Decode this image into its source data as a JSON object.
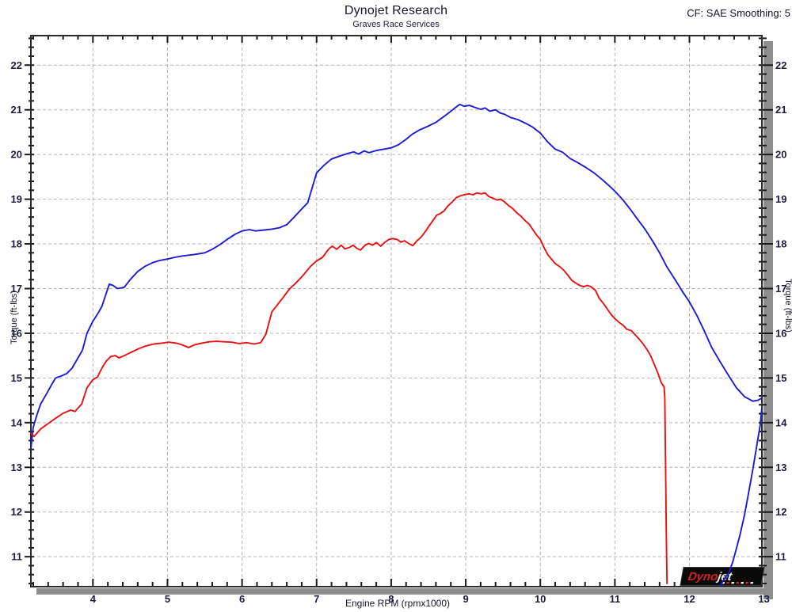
{
  "header": {
    "title": "Dynojet Research",
    "subtitle": "Graves Race Services",
    "top_right_note": "CF: SAE Smoothing: 5"
  },
  "logo": {
    "part1": "Dyno",
    "part2": "jet"
  },
  "colors": {
    "blue_series": "#1b1bd6",
    "red_series": "#ea1010",
    "grid": "#b3b3b3",
    "border": "#2a2a2a",
    "shadow": "#8d8d8d",
    "tick_text": "#1c1c40",
    "logo_bg": "#0a0a0a",
    "logo_red": "#d92121",
    "logo_white": "#f0f0f0"
  },
  "chart_data": {
    "type": "line",
    "title": "Dynojet Research",
    "subtitle": "Graves Race Services",
    "annotation_top_right": "CF: SAE Smoothing: 5",
    "xlabel": "Engine RPM (rpmx1000)",
    "ylabel_left": "Torque (ft-lbs)",
    "ylabel_right": "Torque (ft-lbs)",
    "grid": "dashed, at every major tick",
    "legend_position": "none",
    "x_view": [
      3.168,
      12.972
    ],
    "y_view": [
      10.33,
      22.66
    ],
    "x_ticks": [
      4,
      5,
      6,
      7,
      8,
      9,
      10,
      11,
      12,
      13
    ],
    "y_ticks": [
      11,
      12,
      13,
      14,
      15,
      16,
      17,
      18,
      19,
      20,
      21,
      22
    ],
    "minor_tick_step": 0.2,
    "series": [
      {
        "name": "torque-run-blue",
        "color": "#1b1bd6",
        "points": [
          [
            3.17,
            13.45
          ],
          [
            3.2,
            13.9
          ],
          [
            3.25,
            14.18
          ],
          [
            3.3,
            14.42
          ],
          [
            3.37,
            14.62
          ],
          [
            3.45,
            14.86
          ],
          [
            3.5,
            15.0
          ],
          [
            3.57,
            15.04
          ],
          [
            3.65,
            15.1
          ],
          [
            3.72,
            15.22
          ],
          [
            3.8,
            15.45
          ],
          [
            3.86,
            15.62
          ],
          [
            3.92,
            16.0
          ],
          [
            4.0,
            16.27
          ],
          [
            4.07,
            16.45
          ],
          [
            4.12,
            16.6
          ],
          [
            4.17,
            16.85
          ],
          [
            4.22,
            17.1
          ],
          [
            4.27,
            17.07
          ],
          [
            4.33,
            17.0
          ],
          [
            4.42,
            17.03
          ],
          [
            4.5,
            17.2
          ],
          [
            4.6,
            17.38
          ],
          [
            4.7,
            17.5
          ],
          [
            4.8,
            17.58
          ],
          [
            4.9,
            17.63
          ],
          [
            5.0,
            17.66
          ],
          [
            5.1,
            17.7
          ],
          [
            5.2,
            17.73
          ],
          [
            5.35,
            17.76
          ],
          [
            5.5,
            17.8
          ],
          [
            5.6,
            17.88
          ],
          [
            5.7,
            17.98
          ],
          [
            5.8,
            18.1
          ],
          [
            5.9,
            18.21
          ],
          [
            6.0,
            18.29
          ],
          [
            6.1,
            18.32
          ],
          [
            6.18,
            18.29
          ],
          [
            6.3,
            18.31
          ],
          [
            6.4,
            18.33
          ],
          [
            6.5,
            18.36
          ],
          [
            6.6,
            18.43
          ],
          [
            6.7,
            18.6
          ],
          [
            6.8,
            18.78
          ],
          [
            6.88,
            18.92
          ],
          [
            6.94,
            19.25
          ],
          [
            7.0,
            19.59
          ],
          [
            7.1,
            19.76
          ],
          [
            7.2,
            19.9
          ],
          [
            7.32,
            19.97
          ],
          [
            7.43,
            20.03
          ],
          [
            7.5,
            20.06
          ],
          [
            7.56,
            20.01
          ],
          [
            7.64,
            20.08
          ],
          [
            7.7,
            20.04
          ],
          [
            7.8,
            20.09
          ],
          [
            7.9,
            20.12
          ],
          [
            8.0,
            20.15
          ],
          [
            8.1,
            20.22
          ],
          [
            8.2,
            20.34
          ],
          [
            8.28,
            20.45
          ],
          [
            8.38,
            20.55
          ],
          [
            8.49,
            20.63
          ],
          [
            8.6,
            20.72
          ],
          [
            8.7,
            20.84
          ],
          [
            8.81,
            20.98
          ],
          [
            8.86,
            21.05
          ],
          [
            8.92,
            21.12
          ],
          [
            8.98,
            21.08
          ],
          [
            9.05,
            21.1
          ],
          [
            9.13,
            21.05
          ],
          [
            9.2,
            21.01
          ],
          [
            9.26,
            21.04
          ],
          [
            9.32,
            20.97
          ],
          [
            9.4,
            21.0
          ],
          [
            9.46,
            20.93
          ],
          [
            9.52,
            20.9
          ],
          [
            9.6,
            20.83
          ],
          [
            9.7,
            20.78
          ],
          [
            9.8,
            20.7
          ],
          [
            9.9,
            20.61
          ],
          [
            10.0,
            20.48
          ],
          [
            10.1,
            20.28
          ],
          [
            10.2,
            20.12
          ],
          [
            10.3,
            20.05
          ],
          [
            10.4,
            19.91
          ],
          [
            10.5,
            19.82
          ],
          [
            10.61,
            19.71
          ],
          [
            10.72,
            19.59
          ],
          [
            10.83,
            19.44
          ],
          [
            10.93,
            19.29
          ],
          [
            11.0,
            19.18
          ],
          [
            11.1,
            19.0
          ],
          [
            11.2,
            18.79
          ],
          [
            11.3,
            18.56
          ],
          [
            11.4,
            18.34
          ],
          [
            11.5,
            18.08
          ],
          [
            11.6,
            17.8
          ],
          [
            11.7,
            17.48
          ],
          [
            11.8,
            17.22
          ],
          [
            11.9,
            16.95
          ],
          [
            12.0,
            16.7
          ],
          [
            12.1,
            16.4
          ],
          [
            12.2,
            16.05
          ],
          [
            12.3,
            15.68
          ],
          [
            12.42,
            15.34
          ],
          [
            12.53,
            15.04
          ],
          [
            12.63,
            14.78
          ],
          [
            12.74,
            14.58
          ],
          [
            12.85,
            14.48
          ],
          [
            12.92,
            14.5
          ],
          [
            12.97,
            14.55
          ]
        ]
      },
      {
        "name": "torque-rundown-tail-blue",
        "color": "#1b1bd6",
        "points": [
          [
            12.97,
            14.3
          ],
          [
            12.95,
            13.95
          ],
          [
            12.9,
            13.45
          ],
          [
            12.85,
            12.95
          ],
          [
            12.79,
            12.4
          ],
          [
            12.74,
            11.95
          ],
          [
            12.68,
            11.5
          ],
          [
            12.63,
            11.18
          ],
          [
            12.58,
            10.88
          ],
          [
            12.53,
            10.65
          ],
          [
            12.47,
            10.5
          ],
          [
            12.43,
            10.4
          ],
          [
            12.41,
            10.34
          ]
        ]
      },
      {
        "name": "torque-run-red",
        "color": "#ea1010",
        "points": [
          [
            3.17,
            13.76
          ],
          [
            3.21,
            13.69
          ],
          [
            3.3,
            13.86
          ],
          [
            3.4,
            13.98
          ],
          [
            3.5,
            14.1
          ],
          [
            3.6,
            14.21
          ],
          [
            3.7,
            14.28
          ],
          [
            3.76,
            14.25
          ],
          [
            3.85,
            14.42
          ],
          [
            3.92,
            14.78
          ],
          [
            4.0,
            14.96
          ],
          [
            4.06,
            15.02
          ],
          [
            4.12,
            15.22
          ],
          [
            4.18,
            15.38
          ],
          [
            4.24,
            15.48
          ],
          [
            4.3,
            15.5
          ],
          [
            4.35,
            15.45
          ],
          [
            4.42,
            15.5
          ],
          [
            4.52,
            15.58
          ],
          [
            4.62,
            15.66
          ],
          [
            4.72,
            15.72
          ],
          [
            4.82,
            15.76
          ],
          [
            4.92,
            15.78
          ],
          [
            5.02,
            15.8
          ],
          [
            5.12,
            15.78
          ],
          [
            5.2,
            15.74
          ],
          [
            5.28,
            15.68
          ],
          [
            5.36,
            15.74
          ],
          [
            5.46,
            15.78
          ],
          [
            5.56,
            15.81
          ],
          [
            5.66,
            15.82
          ],
          [
            5.76,
            15.81
          ],
          [
            5.86,
            15.8
          ],
          [
            5.96,
            15.77
          ],
          [
            6.06,
            15.79
          ],
          [
            6.16,
            15.76
          ],
          [
            6.25,
            15.79
          ],
          [
            6.32,
            15.98
          ],
          [
            6.4,
            16.48
          ],
          [
            6.48,
            16.65
          ],
          [
            6.56,
            16.82
          ],
          [
            6.64,
            17.0
          ],
          [
            6.72,
            17.12
          ],
          [
            6.82,
            17.3
          ],
          [
            6.92,
            17.5
          ],
          [
            7.0,
            17.62
          ],
          [
            7.08,
            17.7
          ],
          [
            7.16,
            17.88
          ],
          [
            7.21,
            17.95
          ],
          [
            7.27,
            17.88
          ],
          [
            7.33,
            17.97
          ],
          [
            7.38,
            17.89
          ],
          [
            7.44,
            17.92
          ],
          [
            7.49,
            17.97
          ],
          [
            7.54,
            17.9
          ],
          [
            7.59,
            17.86
          ],
          [
            7.65,
            17.97
          ],
          [
            7.7,
            18.01
          ],
          [
            7.75,
            17.97
          ],
          [
            7.8,
            18.03
          ],
          [
            7.86,
            17.95
          ],
          [
            7.91,
            18.03
          ],
          [
            7.97,
            18.1
          ],
          [
            8.02,
            18.12
          ],
          [
            8.08,
            18.1
          ],
          [
            8.13,
            18.04
          ],
          [
            8.18,
            18.07
          ],
          [
            8.24,
            18.0
          ],
          [
            8.29,
            17.96
          ],
          [
            8.34,
            18.06
          ],
          [
            8.4,
            18.15
          ],
          [
            8.45,
            18.26
          ],
          [
            8.5,
            18.38
          ],
          [
            8.55,
            18.5
          ],
          [
            8.61,
            18.64
          ],
          [
            8.66,
            18.68
          ],
          [
            8.71,
            18.74
          ],
          [
            8.76,
            18.85
          ],
          [
            8.82,
            18.94
          ],
          [
            8.87,
            19.03
          ],
          [
            8.92,
            19.07
          ],
          [
            8.98,
            19.1
          ],
          [
            9.04,
            19.12
          ],
          [
            9.1,
            19.1
          ],
          [
            9.15,
            19.14
          ],
          [
            9.21,
            19.12
          ],
          [
            9.26,
            19.14
          ],
          [
            9.31,
            19.06
          ],
          [
            9.37,
            19.02
          ],
          [
            9.42,
            18.98
          ],
          [
            9.47,
            19.0
          ],
          [
            9.52,
            18.94
          ],
          [
            9.58,
            18.85
          ],
          [
            9.63,
            18.79
          ],
          [
            9.68,
            18.7
          ],
          [
            9.74,
            18.62
          ],
          [
            9.79,
            18.53
          ],
          [
            9.85,
            18.44
          ],
          [
            9.9,
            18.32
          ],
          [
            9.95,
            18.2
          ],
          [
            10.0,
            18.1
          ],
          [
            10.05,
            17.92
          ],
          [
            10.1,
            17.76
          ],
          [
            10.2,
            17.56
          ],
          [
            10.26,
            17.49
          ],
          [
            10.31,
            17.42
          ],
          [
            10.37,
            17.3
          ],
          [
            10.42,
            17.19
          ],
          [
            10.47,
            17.13
          ],
          [
            10.53,
            17.07
          ],
          [
            10.58,
            17.04
          ],
          [
            10.63,
            17.07
          ],
          [
            10.68,
            17.04
          ],
          [
            10.74,
            16.96
          ],
          [
            10.79,
            16.78
          ],
          [
            10.85,
            16.66
          ],
          [
            10.9,
            16.54
          ],
          [
            10.95,
            16.42
          ],
          [
            11.0,
            16.33
          ],
          [
            11.06,
            16.24
          ],
          [
            11.11,
            16.18
          ],
          [
            11.16,
            16.09
          ],
          [
            11.22,
            16.06
          ],
          [
            11.27,
            15.97
          ],
          [
            11.32,
            15.88
          ],
          [
            11.38,
            15.76
          ],
          [
            11.43,
            15.64
          ],
          [
            11.48,
            15.5
          ],
          [
            11.53,
            15.3
          ],
          [
            11.58,
            15.1
          ],
          [
            11.62,
            14.9
          ],
          [
            11.66,
            14.8
          ],
          [
            11.67,
            14.55
          ],
          [
            11.68,
            13.0
          ],
          [
            11.69,
            11.5
          ],
          [
            11.7,
            10.4
          ]
        ]
      }
    ]
  }
}
